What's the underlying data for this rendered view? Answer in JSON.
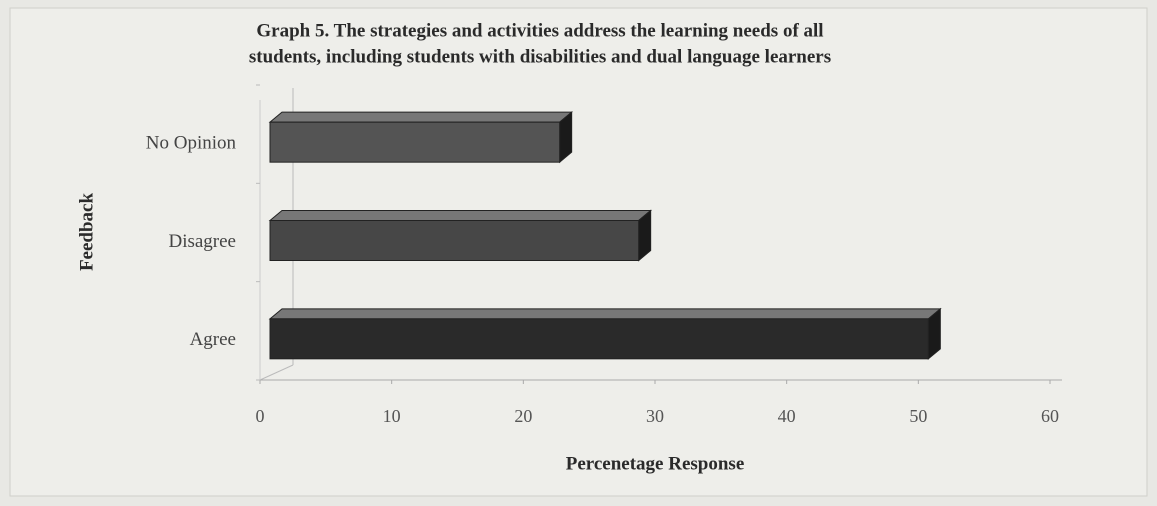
{
  "chart_data": {
    "type": "bar",
    "orientation": "horizontal",
    "title": [
      "Graph 5.  The strategies and activities address the learning needs of all",
      "students, including students with disabilities and dual language learners"
    ],
    "categories": [
      "Agree",
      "Disagree",
      "No Opinion"
    ],
    "values": [
      50,
      28,
      22
    ],
    "colors": [
      "#2a2a2a",
      "#474747",
      "#545454"
    ],
    "xlabel": "Percenetage Response",
    "ylabel": "Feedback",
    "xlim": [
      0,
      60
    ],
    "xticks": [
      0,
      10,
      20,
      30,
      40,
      50,
      60
    ],
    "grid": false
  }
}
